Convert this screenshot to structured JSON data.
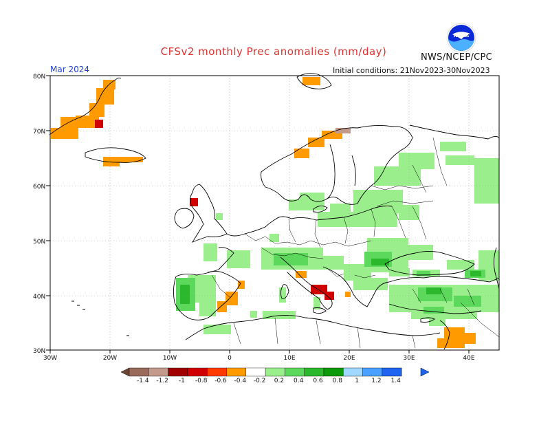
{
  "header": {
    "title": "CFSv2 monthly Prec anomalies (mm/day)",
    "organization": "NWS/NCEP/CPC",
    "logo_text": "NOAA",
    "period": "Mar 2024",
    "initial_conditions": "Initial conditions: 21Nov2023-30Nov2023"
  },
  "map": {
    "region": "Europe",
    "lat_labels": [
      "80N",
      "70N",
      "60N",
      "50N",
      "40N",
      "30N"
    ],
    "lon_labels": [
      "30W",
      "20W",
      "10W",
      "0",
      "10E",
      "20E",
      "30E",
      "40E"
    ],
    "lat_values": [
      80,
      70,
      60,
      50,
      40,
      30
    ],
    "lon_values": [
      -30,
      -20,
      -10,
      0,
      10,
      20,
      30,
      40
    ],
    "lat_range": [
      30,
      80
    ],
    "lon_range": [
      -30,
      45
    ],
    "grid": "dotted",
    "coastline_color": "#000000"
  },
  "colorbar": {
    "tick_labels": [
      "-1.4",
      "-1.2",
      "-1",
      "-0.8",
      "-0.6",
      "-0.4",
      "-0.2",
      "0.2",
      "0.4",
      "0.6",
      "0.8",
      "1",
      "1.2",
      "1.4"
    ],
    "colors": [
      "#6e4634",
      "#9a6a5a",
      "#c49a8c",
      "#a00000",
      "#d00000",
      "#ff3a00",
      "#ff9a00",
      "#ffffff",
      "#9aef8c",
      "#5cd85c",
      "#2cb82c",
      "#0a9a0a",
      "#a0d8ff",
      "#4aa0ff",
      "#1e64f0"
    ],
    "under_color": "#6e4634",
    "over_color": "#1e64f0"
  },
  "anomalies": {
    "dry": [
      {
        "region": "Greenland east coast",
        "value": -0.3
      },
      {
        "region": "Iceland",
        "value": -0.3
      },
      {
        "region": "Svalbard",
        "value": -0.3
      },
      {
        "region": "Norway coast",
        "value": -0.3
      },
      {
        "region": "Scotland",
        "value": -0.7
      },
      {
        "region": "Spain east coast",
        "value": -0.3
      },
      {
        "region": "Southern Italy",
        "value": -0.7
      },
      {
        "region": "Levant",
        "value": -0.3
      }
    ],
    "wet": [
      {
        "region": "Portugal / NW Spain",
        "value": 0.7
      },
      {
        "region": "Central Europe / Alps",
        "value": 0.5
      },
      {
        "region": "Baltic / Scandinavia",
        "value": 0.3
      },
      {
        "region": "Ukraine / Black Sea",
        "value": 0.5
      },
      {
        "region": "Turkey",
        "value": 0.5
      },
      {
        "region": "Caucasus",
        "value": 0.7
      },
      {
        "region": "Russia",
        "value": 0.3
      },
      {
        "region": "Algeria / Morocco",
        "value": 0.3
      }
    ]
  }
}
